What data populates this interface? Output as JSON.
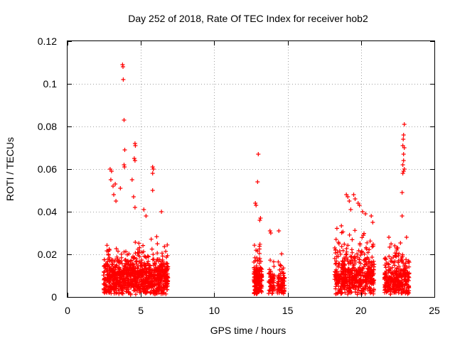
{
  "chart_data": {
    "type": "scatter",
    "title": "Day 252 of 2018, Rate Of TEC Index for receiver hob2",
    "xlabel": "GPS time / hours",
    "ylabel": "ROTI / TECUs",
    "xlim": [
      0,
      25
    ],
    "ylim": [
      0,
      0.12
    ],
    "x_ticks": [
      0,
      5,
      10,
      15,
      20,
      25
    ],
    "x_tick_labels": [
      "0",
      "5",
      "10",
      "15",
      "20",
      "25"
    ],
    "y_ticks": [
      0,
      0.02,
      0.04,
      0.06,
      0.08,
      0.1,
      0.12
    ],
    "y_tick_labels": [
      "0",
      "0.02",
      "0.04",
      "0.06",
      "0.08",
      "0.1",
      "0.12"
    ],
    "grid": true,
    "marker": "+",
    "color": "#ff0000",
    "series": [
      {
        "name": "ROTI",
        "clusters": [
          {
            "x_range": [
              2.45,
              6.85
            ],
            "count": 900,
            "y_base": 0.012,
            "y_spread": 0.018
          },
          {
            "x_range": [
              12.7,
              13.25
            ],
            "count": 160,
            "y_base": 0.01,
            "y_spread": 0.02
          },
          {
            "x_range": [
              13.7,
              14.1
            ],
            "count": 60,
            "y_base": 0.007,
            "y_spread": 0.012
          },
          {
            "x_range": [
              14.3,
              14.8
            ],
            "count": 80,
            "y_base": 0.008,
            "y_spread": 0.015
          },
          {
            "x_range": [
              18.2,
              20.9
            ],
            "count": 500,
            "y_base": 0.011,
            "y_spread": 0.025
          },
          {
            "x_range": [
              21.6,
              23.3
            ],
            "count": 300,
            "y_base": 0.01,
            "y_spread": 0.02
          }
        ],
        "points": [
          [
            3.75,
            0.109
          ],
          [
            3.78,
            0.108
          ],
          [
            3.8,
            0.102
          ],
          [
            3.85,
            0.083
          ],
          [
            3.9,
            0.069
          ],
          [
            4.6,
            0.072
          ],
          [
            4.62,
            0.071
          ],
          [
            4.55,
            0.065
          ],
          [
            4.6,
            0.064
          ],
          [
            3.85,
            0.062
          ],
          [
            3.88,
            0.061
          ],
          [
            2.9,
            0.06
          ],
          [
            3.0,
            0.059
          ],
          [
            2.95,
            0.055
          ],
          [
            3.1,
            0.052
          ],
          [
            3.25,
            0.053
          ],
          [
            3.6,
            0.051
          ],
          [
            4.4,
            0.055
          ],
          [
            4.5,
            0.047
          ],
          [
            5.8,
            0.061
          ],
          [
            5.85,
            0.06
          ],
          [
            5.8,
            0.058
          ],
          [
            5.8,
            0.05
          ],
          [
            4.6,
            0.042
          ],
          [
            3.3,
            0.045
          ],
          [
            3.15,
            0.048
          ],
          [
            6.4,
            0.04
          ],
          [
            5.2,
            0.041
          ],
          [
            5.35,
            0.038
          ],
          [
            13.0,
            0.067
          ],
          [
            12.95,
            0.054
          ],
          [
            12.8,
            0.044
          ],
          [
            12.85,
            0.043
          ],
          [
            13.15,
            0.037
          ],
          [
            13.1,
            0.036
          ],
          [
            13.8,
            0.031
          ],
          [
            14.4,
            0.031
          ],
          [
            13.85,
            0.03
          ],
          [
            19.0,
            0.048
          ],
          [
            19.1,
            0.047
          ],
          [
            19.5,
            0.048
          ],
          [
            19.6,
            0.046
          ],
          [
            19.2,
            0.045
          ],
          [
            19.8,
            0.044
          ],
          [
            19.9,
            0.043
          ],
          [
            20.1,
            0.04
          ],
          [
            20.3,
            0.039
          ],
          [
            20.7,
            0.038
          ],
          [
            19.3,
            0.041
          ],
          [
            20.8,
            0.035
          ],
          [
            18.3,
            0.027
          ],
          [
            18.5,
            0.025
          ],
          [
            22.95,
            0.081
          ],
          [
            22.9,
            0.076
          ],
          [
            22.88,
            0.074
          ],
          [
            22.85,
            0.071
          ],
          [
            22.95,
            0.07
          ],
          [
            22.9,
            0.067
          ],
          [
            22.9,
            0.064
          ],
          [
            22.85,
            0.062
          ],
          [
            22.95,
            0.06
          ],
          [
            22.9,
            0.059
          ],
          [
            22.85,
            0.058
          ],
          [
            22.8,
            0.049
          ],
          [
            22.8,
            0.038
          ],
          [
            23.1,
            0.028
          ],
          [
            21.9,
            0.028
          ],
          [
            22.3,
            0.024
          ],
          [
            22.5,
            0.023
          ]
        ]
      }
    ]
  }
}
